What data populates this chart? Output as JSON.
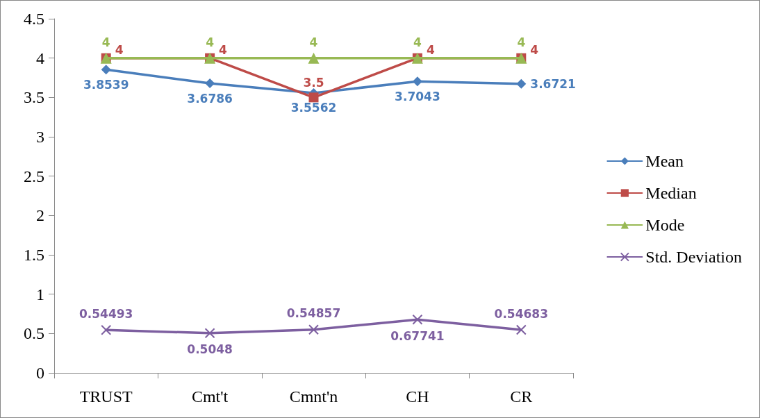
{
  "chart_data": {
    "type": "line",
    "categories": [
      "TRUST",
      "Cmt't",
      "Cmnt'n",
      "CH",
      "CR"
    ],
    "series": [
      {
        "name": "Mean",
        "color": "#4a7ebb",
        "marker": "diamond",
        "values": [
          3.8539,
          3.6786,
          3.5562,
          3.7043,
          3.6721
        ]
      },
      {
        "name": "Median",
        "color": "#be4b48",
        "marker": "square",
        "values": [
          4,
          4,
          3.5,
          4,
          4
        ]
      },
      {
        "name": "Mode",
        "color": "#98b954",
        "marker": "triangle",
        "values": [
          4,
          4,
          4,
          4,
          4
        ]
      },
      {
        "name": "Std. Deviation",
        "color": "#7d5fa0",
        "marker": "cross",
        "values": [
          0.54493,
          0.5048,
          0.54857,
          0.67741,
          0.54683
        ]
      }
    ],
    "ylim": [
      0,
      4.5
    ],
    "yticks": [
      0,
      0.5,
      1,
      1.5,
      2,
      2.5,
      3,
      3.5,
      4,
      4.5
    ],
    "grid": false,
    "legend": "right",
    "data_labels": true
  }
}
